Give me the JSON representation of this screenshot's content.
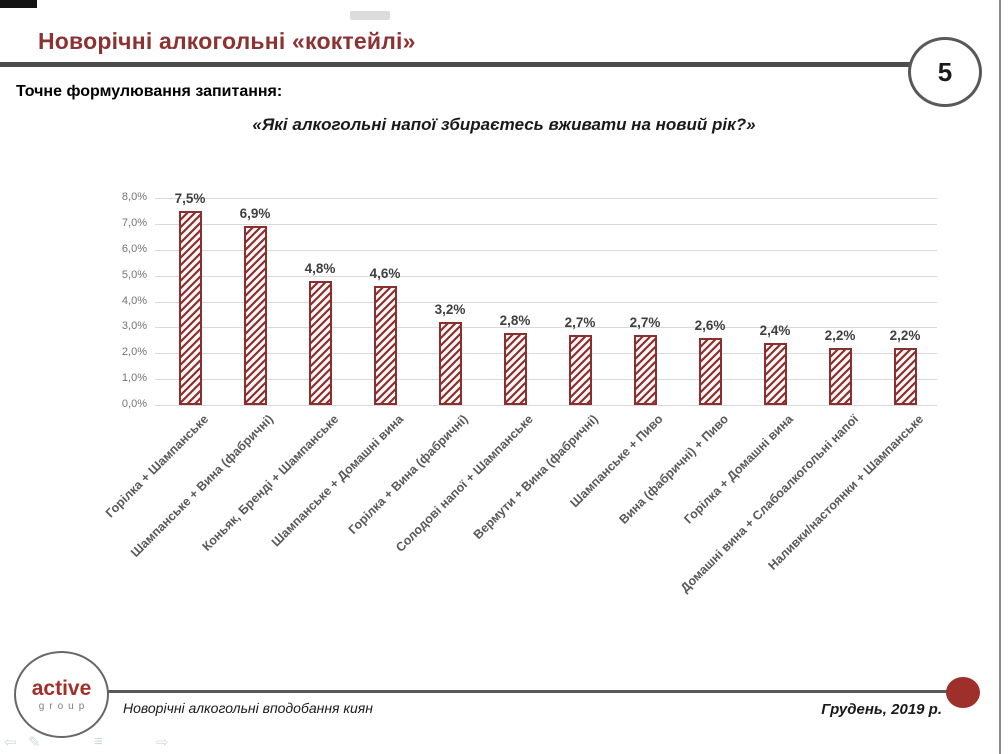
{
  "slide": {
    "title": "Новорічні алкогольні «коктейлі»",
    "page_number": "5",
    "question_label": "Точне формулювання запитання:",
    "question_text": "«Які алкогольні напої збираєтесь вживати на новий рік?»"
  },
  "chart_data": {
    "type": "bar",
    "title": "",
    "xlabel": "",
    "ylabel": "",
    "categories": [
      "Горілка + Шампанське",
      "Шампанське + Вина (фабричні)",
      "Коньяк, Бренді + Шампанське",
      "Шампанське + Домашні вина",
      "Горілка + Вина (фабричні)",
      "Солодові напої + Шампанське",
      "Вермути + Вина (фабричні)",
      "Шампанське + Пиво",
      "Вина (фабричні) + Пиво",
      "Горілка + Домашні вина",
      "Домашні вина + Слабоалкогольні напої",
      "Наливки/настоянки + Шампанське"
    ],
    "values": [
      7.5,
      6.9,
      4.8,
      4.6,
      3.2,
      2.8,
      2.7,
      2.7,
      2.6,
      2.4,
      2.2,
      2.2
    ],
    "value_labels": [
      "7,5%",
      "6,9%",
      "4,8%",
      "4,6%",
      "3,2%",
      "2,8%",
      "2,7%",
      "2,7%",
      "2,6%",
      "2,4%",
      "2,2%",
      "2,2%"
    ],
    "y_ticks": [
      "0,0%",
      "1,0%",
      "2,0%",
      "3,0%",
      "4,0%",
      "5,0%",
      "6,0%",
      "7,0%",
      "8,0%"
    ],
    "ylim": [
      0,
      8
    ],
    "grid": true,
    "legend": false,
    "bar_style": "diagonal-hatch",
    "bar_color": "#8b2e2e",
    "value_label_color": "#3f3f3f"
  },
  "footer": {
    "logo_primary": "active",
    "logo_secondary": "group",
    "caption": "Новорічні алкогольні вподобання киян",
    "date": "Грудень, 2019 р."
  },
  "viewer_controls": {
    "back": "⇦",
    "pen": "✎",
    "menu": "≡",
    "forward": "⇨"
  },
  "colors": {
    "title_red": "#8c3233",
    "bar_red": "#8b2e2e",
    "divider_gray": "#4d4d4d",
    "axis_gray": "#737373",
    "category_gray": "#595959",
    "dot_red": "#9e2f2a"
  }
}
